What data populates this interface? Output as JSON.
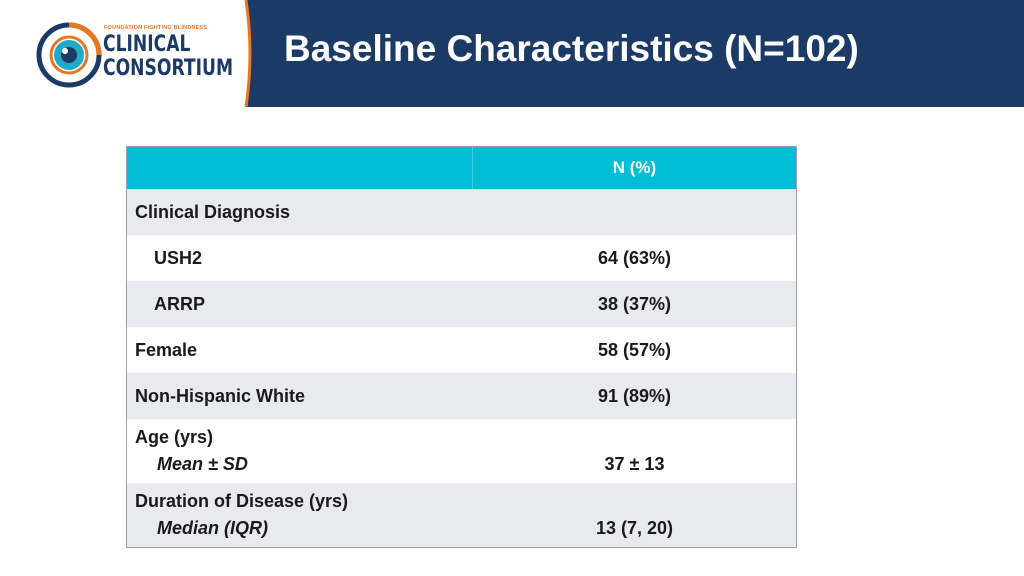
{
  "logo": {
    "tagline": "FOUNDATION FIGHTING BLINDNESS",
    "line1": "CLINICAL",
    "line2": "CONSORTIUM",
    "icon": "eye-icon",
    "colors": {
      "navy": "#1b3a66",
      "orange": "#e87722",
      "teal": "#21a9c7"
    }
  },
  "header": {
    "title": "Baseline Characteristics (N=102)",
    "background": "#1b3a66"
  },
  "table": {
    "header_color": "#00bcd4",
    "columns": [
      "",
      "N (%)"
    ],
    "rows": [
      {
        "label": "Clinical Diagnosis",
        "value": ""
      },
      {
        "label": "USH2",
        "value": "64 (63%)"
      },
      {
        "label": "ARRP",
        "value": "38 (37%)"
      },
      {
        "label": "Female",
        "value": "58 (57%)"
      },
      {
        "label": "Non-Hispanic White",
        "value": "91 (89%)"
      },
      {
        "label": "Age (yrs)",
        "sublabel": "Mean ± SD",
        "value": "37 ± 13"
      },
      {
        "label": "Duration of Disease (yrs)",
        "sublabel": "Median (IQR)",
        "value": "13 (7, 20)"
      }
    ]
  }
}
